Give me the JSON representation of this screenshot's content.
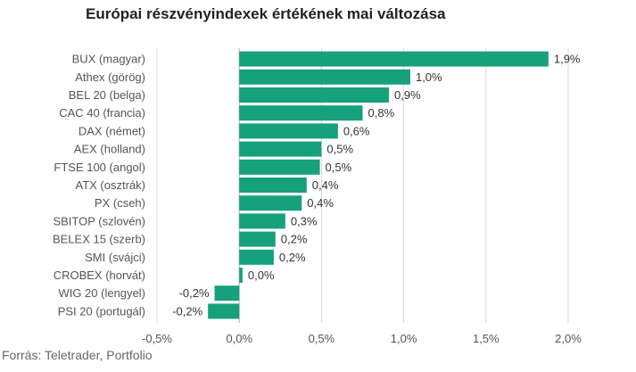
{
  "title": "Európai részvényindexek értékének mai változása",
  "source": "Forrás: Teletrader, Portfolio",
  "chart_data": {
    "type": "bar",
    "orientation": "horizontal",
    "title": "Európai részvényindexek értékének mai változása",
    "categories": [
      "BUX (magyar)",
      "Athex (görög)",
      "BEL 20 (belga)",
      "CAC 40 (francia)",
      "DAX (német)",
      "AEX (holland)",
      "FTSE 100 (angol)",
      "ATX (osztrák)",
      "PX (cseh)",
      "SBITOP (szlovén)",
      "BELEX 15 (szerb)",
      "SMI (svájci)",
      "CROBEX (horvát)",
      "WIG 20 (lengyel)",
      "PSI 20 (portugál)"
    ],
    "values": [
      1.88,
      1.04,
      0.91,
      0.75,
      0.6,
      0.5,
      0.49,
      0.41,
      0.38,
      0.28,
      0.22,
      0.21,
      0.02,
      -0.15,
      -0.19
    ],
    "data_labels": [
      "1,9%",
      "1,0%",
      "0,9%",
      "0,8%",
      "0,6%",
      "0,5%",
      "0,5%",
      "0,4%",
      "0,4%",
      "0,3%",
      "0,2%",
      "0,2%",
      "0,0%",
      "-0,2%",
      "-0,2%"
    ],
    "xticks": [
      -0.5,
      0.0,
      0.5,
      1.0,
      1.5,
      2.0
    ],
    "xtick_labels": [
      "-0,5%",
      "0,0%",
      "0,5%",
      "1,0%",
      "1,5%",
      "2,0%"
    ],
    "xlim": [
      -0.5,
      2.0
    ],
    "bar_color": "#17a07c",
    "grid": true
  }
}
